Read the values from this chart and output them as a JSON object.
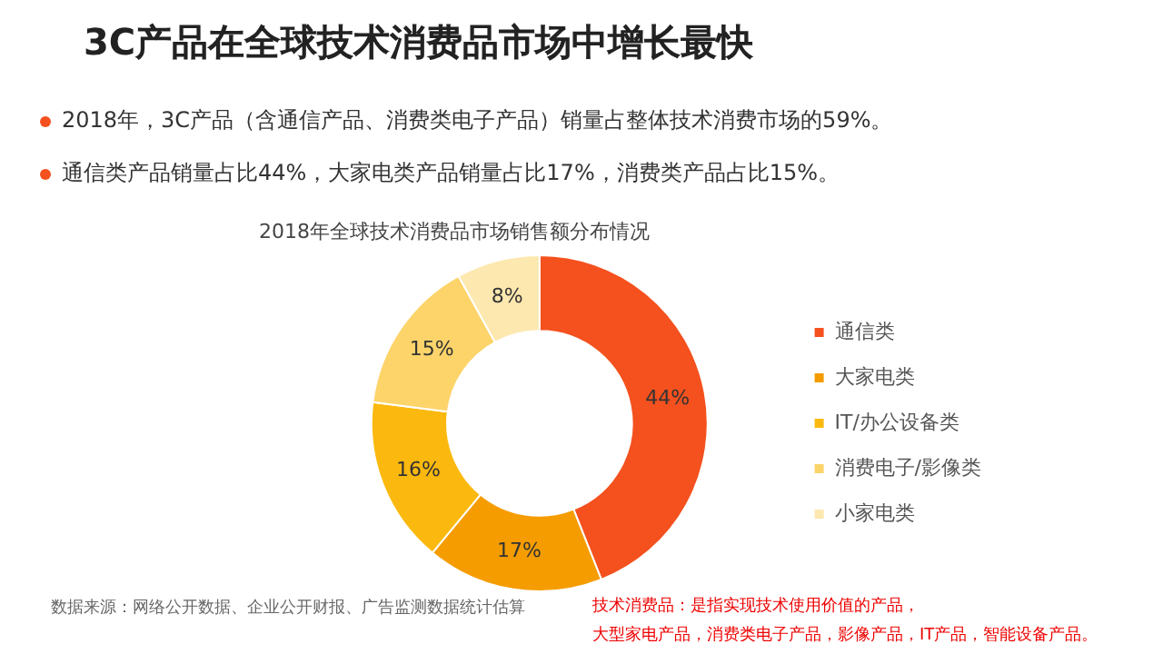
{
  "chart_data": {
    "type": "donut",
    "title": "3C产品在全球技术消费品市场中增长最快",
    "subtitle": "2018年全球技术消费品市场销售额分布情况",
    "categories": [
      "通信类",
      "大家电类",
      "IT/办公设备类",
      "消费电子/影像类",
      "小家电类"
    ],
    "values": [
      44,
      17,
      16,
      15,
      8
    ],
    "colors": [
      "#f4511e",
      "#f59c00",
      "#fbb90f",
      "#fcd46a",
      "#fde8b0"
    ],
    "value_labels": [
      "44%",
      "17%",
      "16%",
      "15%",
      "8%"
    ],
    "legend": "right",
    "annotations": [
      "2018年，3C产品（含通信产品、消费类电子产品）销量占整体技术消费市场的59%。",
      "通信类产品销量占比44%，大家电类产品销量占比17%，消费类产品占比15%。",
      "数据来源：网络公开数据、企业公开财报、广告监测数据统计估算",
      "技术消费品：是指实现技术使用价值的产品，",
      "大型家电产品，消费类电子产品，影像产品，IT产品，智能设备产品。"
    ]
  }
}
